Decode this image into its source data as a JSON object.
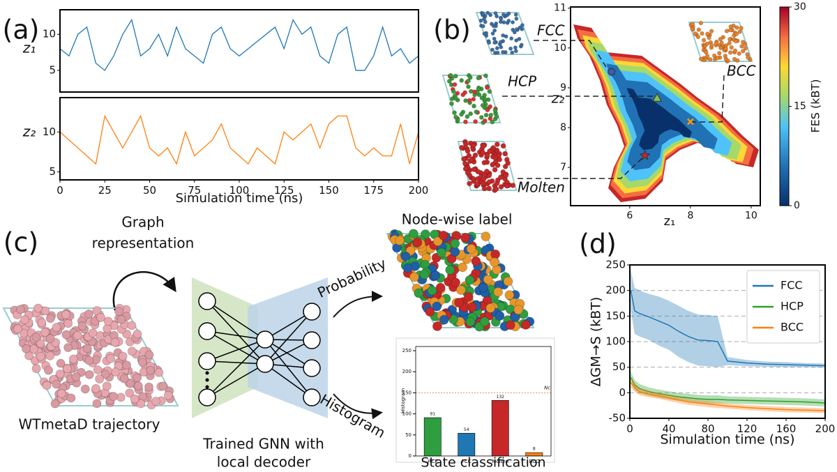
{
  "panel_labels": [
    "(a)",
    "(b)",
    "(c)",
    "(d)"
  ],
  "diagram": {
    "graph_label": [
      "Graph",
      "representation"
    ],
    "trajectory_label": "WTmetaD trajectory",
    "gnn_label": [
      "Trained GNN with",
      "local decoder"
    ],
    "node_label": "Node-wise label",
    "probability": "Probability",
    "histogram": "Histogram"
  },
  "chart_data": [
    {
      "type": "line",
      "ylabel": "z₁",
      "x": [
        0,
        5,
        10,
        15,
        20,
        25,
        30,
        35,
        40,
        45,
        50,
        55,
        60,
        65,
        70,
        75,
        80,
        85,
        90,
        95,
        100,
        105,
        110,
        115,
        120,
        125,
        130,
        135,
        140,
        145,
        150,
        155,
        160,
        165,
        170,
        175,
        180,
        185,
        190,
        195,
        200
      ],
      "series": [
        {
          "color": "#1f77b4",
          "values": [
            8,
            7,
            10,
            11,
            6,
            5,
            7,
            10,
            12,
            7,
            8,
            10,
            7,
            11,
            8,
            7,
            6,
            10,
            11,
            8,
            7,
            8,
            9,
            10,
            11,
            8,
            12,
            10,
            11,
            7,
            6,
            10,
            11,
            5,
            5,
            7,
            11,
            7,
            8,
            6,
            7
          ]
        }
      ],
      "xlim": [
        0,
        200
      ],
      "ylim": [
        2,
        13.4
      ],
      "yticks": [
        5,
        10
      ]
    },
    {
      "type": "line",
      "ylabel": "z₂",
      "xlabel": "Simulation time (ns)",
      "x": [
        0,
        5,
        10,
        15,
        20,
        25,
        30,
        35,
        40,
        45,
        50,
        55,
        60,
        65,
        70,
        75,
        80,
        85,
        90,
        95,
        100,
        105,
        110,
        115,
        120,
        125,
        130,
        135,
        140,
        145,
        150,
        155,
        160,
        165,
        170,
        175,
        180,
        185,
        190,
        195,
        200
      ],
      "series": [
        {
          "color": "#ff7f0e",
          "values": [
            10,
            9,
            8,
            7,
            6,
            12,
            10,
            8,
            10,
            12,
            8,
            7,
            8,
            6,
            10,
            7,
            8,
            9,
            11,
            8,
            7,
            6,
            8,
            7,
            6,
            10,
            9,
            10,
            11,
            8,
            11,
            12,
            12,
            8,
            7,
            8,
            7,
            7,
            11,
            6,
            10
          ]
        }
      ],
      "xlim": [
        0,
        200
      ],
      "ylim": [
        4,
        14.3
      ],
      "xticks": [
        0,
        25,
        50,
        75,
        100,
        125,
        150,
        175,
        200
      ],
      "yticks": [
        5,
        10
      ]
    },
    {
      "type": "scatter",
      "xlabel": "z₁",
      "ylabel": "z₂",
      "categories": [
        "FCC",
        "HCP",
        "BCC",
        "Molten"
      ],
      "x": [
        5.4,
        6.9,
        8.0,
        6.5
      ],
      "y": [
        9.4,
        8.75,
        8.15,
        7.3
      ],
      "markers": [
        "circle",
        "triangle",
        "x",
        "star"
      ],
      "colors": [
        "#3b5bab",
        "#8bc34a",
        "#ff9800",
        "#c62828"
      ],
      "xlim": [
        4.05,
        10.3
      ],
      "ylim": [
        6.04,
        11.03
      ],
      "xticks": [
        6,
        8,
        10
      ],
      "yticks": [
        7,
        8,
        9,
        10,
        11
      ],
      "colorbar": {
        "label": "FES (kBT)",
        "lim": [
          0,
          30
        ],
        "ticks": [
          0,
          15,
          30
        ]
      }
    },
    {
      "type": "bar",
      "title": "State classification",
      "ylabel": "Histogram",
      "categories": [
        "HCP",
        "FCC",
        "Molten",
        "BCC"
      ],
      "values": [
        91,
        54,
        132,
        8
      ],
      "colors": [
        "#2e9e3f",
        "#1f77b4",
        "#c62828",
        "#ff7f0e"
      ],
      "ylim": [
        0,
        260
      ],
      "yticks": [
        0,
        50,
        100,
        150,
        200,
        250
      ],
      "threshold": 150,
      "threshold_label": "Nc"
    },
    {
      "type": "line",
      "xlabel": "Simulation time (ns)",
      "ylabel": "ΔGM→S (kBT)",
      "x": [
        1,
        5,
        10,
        20,
        30,
        40,
        50,
        60,
        70,
        80,
        90,
        100,
        120,
        140,
        160,
        180,
        200
      ],
      "series": [
        {
          "name": "FCC",
          "color": "#1f77b4",
          "values": [
            200,
            160,
            155,
            148,
            140,
            132,
            120,
            110,
            103,
            102,
            100,
            62,
            58,
            56,
            55,
            54,
            53
          ],
          "errors": [
            40,
            45,
            45,
            45,
            48,
            48,
            50,
            50,
            50,
            50,
            50,
            8,
            6,
            5,
            5,
            4,
            4
          ]
        },
        {
          "name": "HCP",
          "color": "#2ca02c",
          "values": [
            30,
            15,
            8,
            2,
            -2,
            -5,
            -8,
            -10,
            -12,
            -13,
            -13,
            -14,
            -15,
            -16,
            -17,
            -18,
            -20
          ],
          "errors": [
            12,
            10,
            9,
            8,
            8,
            8,
            8,
            8,
            8,
            8,
            8,
            7,
            7,
            7,
            7,
            7,
            7
          ]
        },
        {
          "name": "BCC",
          "color": "#ff7f0e",
          "values": [
            20,
            10,
            2,
            -3,
            -6,
            -10,
            -14,
            -18,
            -20,
            -22,
            -24,
            -26,
            -29,
            -31,
            -33,
            -34,
            -35
          ],
          "errors": [
            10,
            8,
            7,
            6,
            6,
            6,
            6,
            6,
            6,
            6,
            6,
            5,
            5,
            5,
            5,
            5,
            5
          ]
        }
      ],
      "xlim": [
        0,
        200
      ],
      "ylim": [
        -50,
        250
      ],
      "xticks": [
        0,
        40,
        80,
        120,
        160,
        200
      ],
      "yticks": [
        -50,
        0,
        50,
        100,
        150,
        200,
        250
      ],
      "grid": true,
      "legend": "upper right"
    }
  ]
}
